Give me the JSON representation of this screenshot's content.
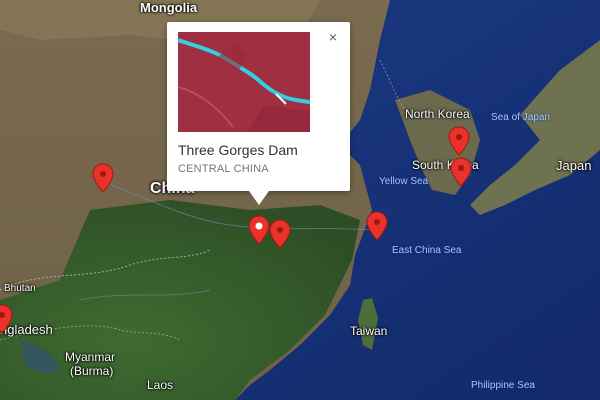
{
  "map": {
    "type": "satellite",
    "labels": {
      "mongolia": "Mongolia",
      "china": "China",
      "north_korea": "North Korea",
      "south_korea": "South Korea",
      "japan": "Japan",
      "sea_of_japan": "Sea of Japan",
      "yellow_sea": "Yellow Sea",
      "east_china_sea": "East China Sea",
      "taiwan": "Taiwan",
      "bhutan": "Bhutan",
      "bangladesh": "ngladesh",
      "myanmar": "Myanmar",
      "burma": "(Burma)",
      "laos": "Laos",
      "philippine_sea": "Philippine Sea"
    },
    "markers": [
      {
        "name": "marker-west-china",
        "color": "#e8322b"
      },
      {
        "name": "marker-three-gorges",
        "color": "#e8322b",
        "selected": true
      },
      {
        "name": "marker-central-china-east",
        "color": "#e8322b"
      },
      {
        "name": "marker-shanghai",
        "color": "#e8322b"
      },
      {
        "name": "marker-north-korea",
        "color": "#e8322b"
      },
      {
        "name": "marker-south-korea",
        "color": "#e8322b"
      },
      {
        "name": "marker-bangladesh",
        "color": "#e8322b"
      }
    ]
  },
  "infowindow": {
    "title": "Three Gorges Dam",
    "subtitle": "CENTRAL CHINA",
    "close_glyph": "×",
    "thumbnail": "satellite-false-color-river"
  }
}
